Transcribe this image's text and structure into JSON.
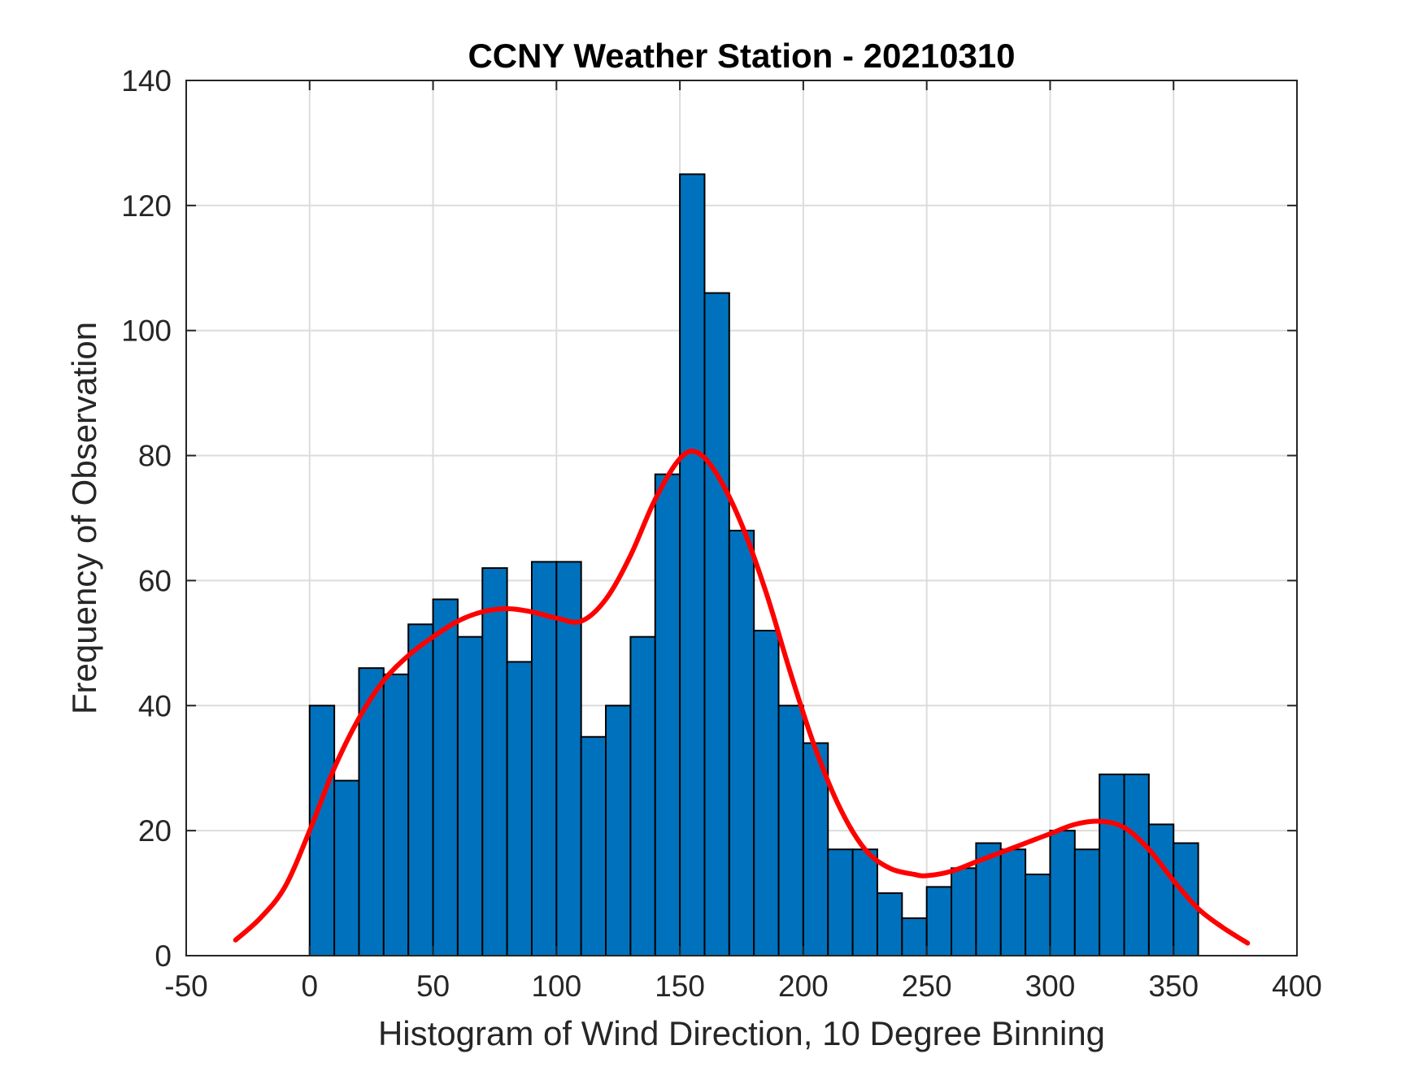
{
  "chart_data": {
    "type": "bar",
    "title": "CCNY Weather Station - 20210310",
    "xlabel": "Histogram of Wind Direction, 10 Degree Binning",
    "ylabel": "Frequency of Observation",
    "xlim": [
      -50,
      400
    ],
    "ylim": [
      0,
      140
    ],
    "xticks": [
      -50,
      0,
      50,
      100,
      150,
      200,
      250,
      300,
      350,
      400
    ],
    "yticks": [
      0,
      20,
      40,
      60,
      80,
      100,
      120,
      140
    ],
    "grid": true,
    "bin_width": 10,
    "bin_edges_start": [
      0,
      10,
      20,
      30,
      40,
      50,
      60,
      70,
      80,
      90,
      100,
      110,
      120,
      130,
      140,
      150,
      160,
      170,
      180,
      190,
      200,
      210,
      220,
      230,
      240,
      250,
      260,
      270,
      280,
      290,
      300,
      310,
      320,
      330,
      340,
      350
    ],
    "values": [
      40,
      28,
      46,
      45,
      53,
      57,
      51,
      62,
      47,
      63,
      63,
      35,
      40,
      51,
      77,
      125,
      106,
      68,
      52,
      40,
      34,
      17,
      17,
      10,
      6,
      11,
      14,
      18,
      17,
      13,
      20,
      17,
      29,
      29,
      21,
      18
    ],
    "bar_color": "#0072bd",
    "bar_edge_color": "#000000",
    "fit_curve": {
      "color": "#ff0000",
      "x": [
        -30,
        -20,
        -10,
        0,
        10,
        20,
        30,
        40,
        50,
        60,
        70,
        80,
        90,
        100,
        110,
        120,
        130,
        140,
        150,
        157,
        165,
        175,
        185,
        195,
        205,
        215,
        225,
        235,
        245,
        250,
        260,
        270,
        280,
        290,
        300,
        310,
        320,
        330,
        340,
        350,
        360,
        370,
        380
      ],
      "y": [
        2.5,
        6,
        11,
        20,
        30,
        38,
        44,
        48,
        51,
        53.5,
        55,
        55.5,
        55,
        54,
        53.5,
        57,
        64,
        73,
        79.5,
        80.5,
        77,
        69,
        58,
        45,
        33,
        23.5,
        17,
        14,
        13,
        12.8,
        13.5,
        15,
        16.5,
        18,
        19.5,
        21,
        21.5,
        20.5,
        17,
        12,
        7.5,
        4.5,
        2
      ]
    }
  }
}
